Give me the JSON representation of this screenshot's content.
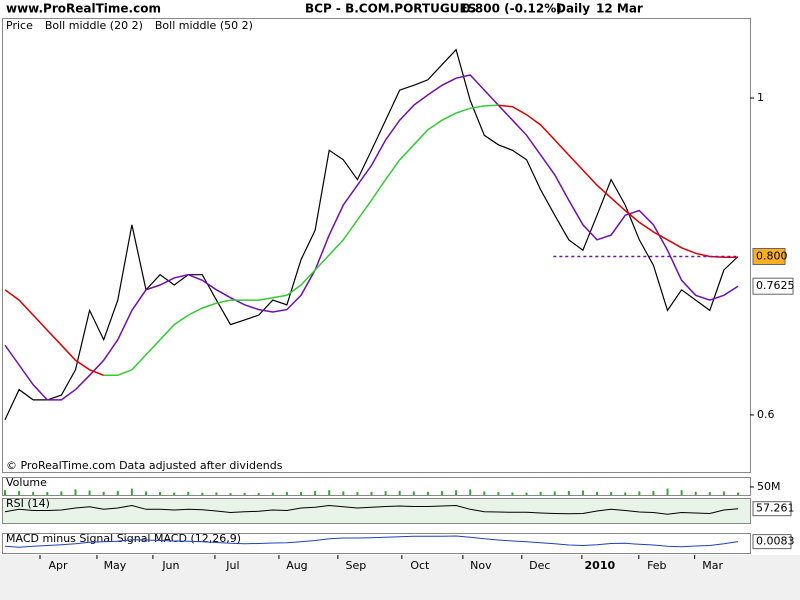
{
  "header": {
    "site": "www.ProRealTime.com",
    "title": "BCP - B.COM.PORTUGUES",
    "quote": "0.800 (-0.12%)",
    "period": "Daily",
    "date": "12 Mar"
  },
  "note": "© ProRealTime.com Data adjusted after dividends",
  "chart_data": [
    {
      "type": "line",
      "xlim": [
        0,
        52
      ],
      "ylim": [
        0.528,
        1.101
      ],
      "yticks": [
        0.6,
        1
      ],
      "xticks": [
        {
          "value": 3.76,
          "label": "Apr"
        },
        {
          "value": 7.8,
          "label": "May"
        },
        {
          "value": 11.77,
          "label": "Jun"
        },
        {
          "value": 16.17,
          "label": "Jul"
        },
        {
          "value": 20.71,
          "label": "Aug"
        },
        {
          "value": 24.89,
          "label": "Sep"
        },
        {
          "value": 29.43,
          "label": "Oct"
        },
        {
          "value": 33.76,
          "label": "Nov"
        },
        {
          "value": 37.94,
          "label": "Dec"
        },
        {
          "value": 42.2,
          "label": "2010"
        },
        {
          "value": 46.24,
          "label": "Feb"
        },
        {
          "value": 50.2,
          "label": "Mar"
        }
      ],
      "price_tag": {
        "value": 0.8,
        "label": "0.800"
      },
      "series": [
        {
          "name": "Price",
          "color": "#000000",
          "values": [
            0.594,
            0.632,
            0.619,
            0.619,
            0.625,
            0.657,
            0.732,
            0.695,
            0.745,
            0.84,
            0.758,
            0.777,
            0.764,
            0.777,
            0.777,
            0.745,
            0.714,
            0.72,
            0.726,
            0.745,
            0.739,
            0.796,
            0.833,
            0.934,
            0.922,
            0.897,
            0.934,
            0.972,
            1.01,
            1.016,
            1.023,
            1.042,
            1.061,
            0.997,
            0.953,
            0.941,
            0.934,
            0.922,
            0.884,
            0.852,
            0.821,
            0.808,
            0.852,
            0.897,
            0.865,
            0.821,
            0.789,
            0.732,
            0.758,
            0.745,
            0.732,
            0.783,
            0.8
          ]
        },
        {
          "name": "Boll middle (20 2)",
          "color": "#7010b0",
          "values": [
            0.688,
            0.663,
            0.638,
            0.619,
            0.619,
            0.632,
            0.65,
            0.669,
            0.695,
            0.732,
            0.758,
            0.764,
            0.773,
            0.777,
            0.77,
            0.758,
            0.748,
            0.739,
            0.733,
            0.73,
            0.733,
            0.751,
            0.783,
            0.827,
            0.865,
            0.89,
            0.915,
            0.947,
            0.972,
            0.991,
            1.004,
            1.016,
            1.025,
            1.029,
            1.01,
            0.991,
            0.972,
            0.953,
            0.928,
            0.903,
            0.871,
            0.84,
            0.821,
            0.827,
            0.852,
            0.858,
            0.84,
            0.808,
            0.77,
            0.751,
            0.745,
            0.751,
            0.7625
          ]
        },
        {
          "name": "Boll middle (50 2)",
          "color": "#e00000",
          "colors": [
            "#e00000",
            "#e00000",
            "#e00000",
            "#e00000",
            "#e00000",
            "#e00000",
            "#e00000",
            "#e00000",
            "#33cc33",
            "#33cc33",
            "#33cc33",
            "#33cc33",
            "#33cc33",
            "#33cc33",
            "#33cc33",
            "#33cc33",
            "#33cc33",
            "#33cc33",
            "#33cc33",
            "#33cc33",
            "#33cc33",
            "#33cc33",
            "#33cc33",
            "#33cc33",
            "#33cc33",
            "#33cc33",
            "#33cc33",
            "#33cc33",
            "#33cc33",
            "#33cc33",
            "#33cc33",
            "#33cc33",
            "#33cc33",
            "#33cc33",
            "#33cc33",
            "#33cc33",
            "#e00000",
            "#e00000",
            "#e00000",
            "#e00000",
            "#e00000",
            "#e00000",
            "#e00000",
            "#e00000",
            "#e00000",
            "#e00000",
            "#e00000",
            "#e00000",
            "#e00000",
            "#e00000",
            "#e00000",
            "#e00000",
            "#e00000"
          ],
          "values": [
            0.758,
            0.745,
            0.726,
            0.707,
            0.688,
            0.669,
            0.657,
            0.65,
            0.65,
            0.657,
            0.676,
            0.695,
            0.714,
            0.726,
            0.735,
            0.741,
            0.745,
            0.745,
            0.745,
            0.748,
            0.751,
            0.764,
            0.783,
            0.802,
            0.821,
            0.846,
            0.871,
            0.897,
            0.922,
            0.941,
            0.96,
            0.972,
            0.981,
            0.987,
            0.99,
            0.991,
            0.989,
            0.979,
            0.966,
            0.947,
            0.928,
            0.909,
            0.89,
            0.874,
            0.858,
            0.843,
            0.831,
            0.821,
            0.811,
            0.804,
            0.8,
            0.799,
            0.799
          ]
        }
      ]
    },
    {
      "type": "bar",
      "title": "Volume",
      "color": "#33aa33",
      "ylim": [
        0,
        112
      ],
      "yticks": [
        {
          "value": 50,
          "label": "50M"
        }
      ],
      "values": [
        30,
        25,
        20,
        18,
        22,
        35,
        28,
        20,
        25,
        40,
        22,
        18,
        15,
        20,
        14,
        16,
        12,
        14,
        13,
        15,
        18,
        20,
        25,
        30,
        22,
        18,
        20,
        24,
        26,
        22,
        20,
        24,
        30,
        35,
        22,
        18,
        16,
        15,
        20,
        22,
        25,
        28,
        20,
        18,
        16,
        22,
        25,
        40,
        30,
        20,
        18,
        22,
        15
      ]
    },
    {
      "type": "line",
      "title": "RSI (14)",
      "color": "#000000",
      "ylim": [
        0,
        100
      ],
      "values": [
        45,
        55,
        50,
        50,
        52,
        60,
        65,
        55,
        60,
        70,
        55,
        55,
        52,
        55,
        53,
        48,
        42,
        45,
        47,
        52,
        50,
        60,
        63,
        70,
        65,
        60,
        63,
        66,
        68,
        66,
        66,
        68,
        70,
        55,
        45,
        44,
        43,
        43,
        40,
        38,
        37,
        38,
        48,
        55,
        50,
        44,
        42,
        35,
        42,
        40,
        38,
        52,
        57.261
      ]
    },
    {
      "type": "line",
      "title": "MACD minus Signal Signal MACD (12,26,9)",
      "color": "#2040c0",
      "ylim": [
        -0.06,
        0.06
      ],
      "values": [
        -0.02,
        -0.025,
        -0.02,
        -0.015,
        -0.01,
        -0.005,
        0.005,
        0.008,
        0.01,
        0.02,
        0.018,
        0.015,
        0.012,
        0.01,
        0.008,
        0.003,
        -0.002,
        -0.004,
        -0.003,
        0,
        0.002,
        0.008,
        0.015,
        0.025,
        0.03,
        0.03,
        0.032,
        0.035,
        0.038,
        0.04,
        0.04,
        0.04,
        0.042,
        0.035,
        0.025,
        0.018,
        0.012,
        0.008,
        0.002,
        -0.005,
        -0.012,
        -0.015,
        -0.01,
        -0.003,
        -0.002,
        -0.008,
        -0.012,
        -0.02,
        -0.022,
        -0.018,
        -0.015,
        -0.005,
        0.0083
      ]
    }
  ]
}
